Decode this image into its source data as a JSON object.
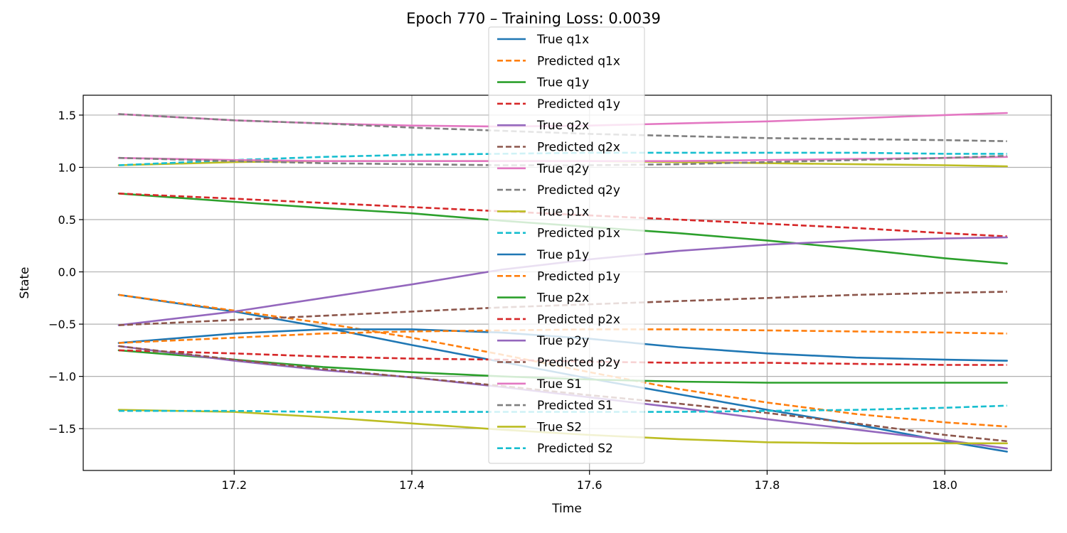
{
  "chart_data": {
    "type": "line",
    "title": "Epoch 770 – Training Loss: 0.0039",
    "xlabel": "Time",
    "ylabel": "State",
    "xlim": [
      17.03,
      18.12
    ],
    "ylim": [
      -1.9,
      1.69
    ],
    "xticks": [
      17.2,
      17.4,
      17.6,
      17.8,
      18.0
    ],
    "yticks": [
      -1.5,
      -1.0,
      -0.5,
      0.0,
      0.5,
      1.0,
      1.5
    ],
    "xtick_labels": [
      "17.2",
      "17.4",
      "17.6",
      "17.8",
      "18.0"
    ],
    "ytick_labels": [
      "−1.5",
      "−1.0",
      "−0.5",
      "0.0",
      "0.5",
      "1.0",
      "1.5"
    ],
    "grid": true,
    "legend_position": "top-center",
    "x": [
      17.07,
      17.2,
      17.3,
      17.4,
      17.5,
      17.6,
      17.7,
      17.8,
      17.9,
      18.0,
      18.07
    ],
    "series": [
      {
        "name": "True q1x",
        "color": "#1f77b4",
        "style": "solid",
        "values": [
          -0.22,
          -0.38,
          -0.53,
          -0.7,
          -0.86,
          -1.02,
          -1.17,
          -1.32,
          -1.46,
          -1.62,
          -1.72
        ]
      },
      {
        "name": "Predicted q1x",
        "color": "#ff7f0e",
        "style": "dashed",
        "values": [
          -0.22,
          -0.37,
          -0.49,
          -0.63,
          -0.79,
          -0.96,
          -1.12,
          -1.25,
          -1.36,
          -1.44,
          -1.48
        ]
      },
      {
        "name": "True q1y",
        "color": "#2ca02c",
        "style": "solid",
        "values": [
          0.75,
          0.67,
          0.61,
          0.56,
          0.49,
          0.43,
          0.37,
          0.3,
          0.22,
          0.13,
          0.08
        ]
      },
      {
        "name": "Predicted q1y",
        "color": "#d62728",
        "style": "dashed",
        "values": [
          0.75,
          0.7,
          0.66,
          0.62,
          0.58,
          0.54,
          0.5,
          0.46,
          0.42,
          0.37,
          0.34
        ]
      },
      {
        "name": "True q2x",
        "color": "#9467bd",
        "style": "solid",
        "values": [
          -0.51,
          -0.38,
          -0.25,
          -0.12,
          0.02,
          0.12,
          0.2,
          0.26,
          0.3,
          0.32,
          0.33
        ]
      },
      {
        "name": "Predicted q2x",
        "color": "#8c564b",
        "style": "dashed",
        "values": [
          -0.51,
          -0.46,
          -0.42,
          -0.38,
          -0.34,
          -0.31,
          -0.28,
          -0.25,
          -0.22,
          -0.2,
          -0.19
        ]
      },
      {
        "name": "True q2y",
        "color": "#e377c2",
        "style": "solid",
        "values": [
          1.51,
          1.45,
          1.42,
          1.4,
          1.39,
          1.4,
          1.42,
          1.44,
          1.47,
          1.5,
          1.52
        ]
      },
      {
        "name": "Predicted q2y",
        "color": "#7f7f7f",
        "style": "dashed",
        "values": [
          1.51,
          1.45,
          1.42,
          1.38,
          1.35,
          1.32,
          1.3,
          1.28,
          1.27,
          1.26,
          1.25
        ]
      },
      {
        "name": "True p1x",
        "color": "#bcbd22",
        "style": "solid",
        "values": [
          1.02,
          1.05,
          1.06,
          1.06,
          1.06,
          1.06,
          1.05,
          1.04,
          1.03,
          1.02,
          1.01
        ]
      },
      {
        "name": "Predicted p1x",
        "color": "#17becf",
        "style": "dashed",
        "values": [
          1.02,
          1.07,
          1.1,
          1.12,
          1.13,
          1.14,
          1.14,
          1.14,
          1.14,
          1.13,
          1.13
        ]
      },
      {
        "name": "True p1y",
        "color": "#1f77b4",
        "style": "solid",
        "values": [
          -0.68,
          -0.59,
          -0.55,
          -0.55,
          -0.58,
          -0.64,
          -0.72,
          -0.78,
          -0.82,
          -0.84,
          -0.85
        ]
      },
      {
        "name": "Predicted p1y",
        "color": "#ff7f0e",
        "style": "dashed",
        "values": [
          -0.68,
          -0.63,
          -0.59,
          -0.57,
          -0.56,
          -0.55,
          -0.55,
          -0.56,
          -0.57,
          -0.58,
          -0.59
        ]
      },
      {
        "name": "True p2x",
        "color": "#2ca02c",
        "style": "solid",
        "values": [
          -0.75,
          -0.84,
          -0.91,
          -0.96,
          -1.0,
          -1.03,
          -1.05,
          -1.06,
          -1.06,
          -1.06,
          -1.06
        ]
      },
      {
        "name": "Predicted p2x",
        "color": "#d62728",
        "style": "dashed",
        "values": [
          -0.75,
          -0.78,
          -0.81,
          -0.83,
          -0.84,
          -0.86,
          -0.87,
          -0.87,
          -0.88,
          -0.89,
          -0.89
        ]
      },
      {
        "name": "True p2y",
        "color": "#9467bd",
        "style": "solid",
        "values": [
          -0.71,
          -0.85,
          -0.94,
          -1.01,
          -1.1,
          -1.2,
          -1.3,
          -1.41,
          -1.51,
          -1.61,
          -1.69
        ]
      },
      {
        "name": "Predicted p2y",
        "color": "#8c564b",
        "style": "dashed",
        "values": [
          -0.71,
          -0.84,
          -0.93,
          -1.01,
          -1.09,
          -1.18,
          -1.26,
          -1.35,
          -1.45,
          -1.56,
          -1.62
        ]
      },
      {
        "name": "True S1",
        "color": "#e377c2",
        "style": "solid",
        "values": [
          1.09,
          1.07,
          1.06,
          1.06,
          1.06,
          1.06,
          1.06,
          1.07,
          1.08,
          1.09,
          1.1
        ]
      },
      {
        "name": "Predicted S1",
        "color": "#7f7f7f",
        "style": "dashed",
        "values": [
          1.09,
          1.06,
          1.04,
          1.03,
          1.02,
          1.02,
          1.03,
          1.05,
          1.07,
          1.09,
          1.11
        ]
      },
      {
        "name": "True S2",
        "color": "#bcbd22",
        "style": "solid",
        "values": [
          -1.32,
          -1.34,
          -1.39,
          -1.45,
          -1.51,
          -1.56,
          -1.6,
          -1.63,
          -1.64,
          -1.64,
          -1.64
        ]
      },
      {
        "name": "Predicted S2",
        "color": "#17becf",
        "style": "dashed",
        "values": [
          -1.33,
          -1.33,
          -1.34,
          -1.34,
          -1.34,
          -1.34,
          -1.34,
          -1.33,
          -1.32,
          -1.3,
          -1.28
        ]
      }
    ]
  }
}
